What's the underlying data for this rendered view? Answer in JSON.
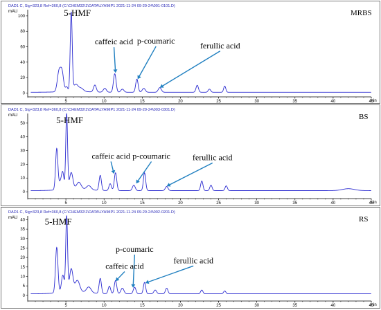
{
  "chart_data": [
    {
      "type": "line",
      "header": "DAD1 C, Sig=323,8 Ref=360,8 (C:\\CHEM32\\1\\DATA\\LYA\\MP1 2021-11-24 09-29-24\\001-0101.D)",
      "sample": "MRBS",
      "ylabel": "mAU",
      "xlabel": "min",
      "xlim": [
        0,
        45
      ],
      "ylim": [
        -5,
        108
      ],
      "xticks": [
        "5",
        "10",
        "15",
        "20",
        "25",
        "30",
        "35",
        "40",
        "45"
      ],
      "yticks": [
        "0",
        "20",
        "40",
        "60",
        "80",
        "100"
      ],
      "baseline": 1.0,
      "peaks": [
        {
          "x": 4.1,
          "h": 26,
          "w": 0.22
        },
        {
          "x": 4.5,
          "h": 24,
          "w": 0.2
        },
        {
          "x": 5.1,
          "h": 6,
          "w": 0.15
        },
        {
          "x": 5.7,
          "h": 102,
          "w": 0.13
        },
        {
          "x": 6.3,
          "h": 9,
          "w": 0.3
        },
        {
          "x": 7.0,
          "h": 4,
          "w": 0.3
        },
        {
          "x": 8.8,
          "h": 9,
          "w": 0.18
        },
        {
          "x": 10.1,
          "h": 5,
          "w": 0.2
        },
        {
          "x": 11.4,
          "h": 24,
          "w": 0.17
        },
        {
          "x": 12.4,
          "h": 4,
          "w": 0.2
        },
        {
          "x": 14.3,
          "h": 17,
          "w": 0.16
        },
        {
          "x": 15.2,
          "h": 5,
          "w": 0.2
        },
        {
          "x": 17.3,
          "h": 6,
          "w": 0.2
        },
        {
          "x": 22.2,
          "h": 9,
          "w": 0.16
        },
        {
          "x": 23.8,
          "h": 4,
          "w": 0.16
        },
        {
          "x": 25.8,
          "h": 8,
          "w": 0.14
        }
      ],
      "annotations": [
        {
          "text": "5-HMF",
          "x": 6.5,
          "y": 100,
          "big": true
        },
        {
          "text": "caffeic acid",
          "x": 11.3,
          "y": 63,
          "arrow_to": [
            11.5,
            26
          ]
        },
        {
          "text": "p-coumaric",
          "x": 16.8,
          "y": 64,
          "arrow_to": [
            14.4,
            18
          ]
        },
        {
          "text": "ferullic acid",
          "x": 25.2,
          "y": 58,
          "arrow_to": [
            17.3,
            7
          ]
        }
      ]
    },
    {
      "type": "line",
      "header": "DAD1 C, Sig=323,8 Ref=360,8 (C:\\CHEM32\\1\\DATA\\LYA\\MP1 2021-11-24 09-29-24\\003-0301.D)",
      "sample": "BS",
      "ylabel": "mAU",
      "xlabel": "min",
      "xlim": [
        0,
        45
      ],
      "ylim": [
        -5,
        57
      ],
      "xticks": [
        "5",
        "10",
        "15",
        "20",
        "25",
        "30",
        "35",
        "40",
        "45"
      ],
      "yticks": [
        "0",
        "10",
        "20",
        "30",
        "40",
        "50"
      ],
      "baseline": 0.8,
      "peaks": [
        {
          "x": 3.8,
          "h": 30,
          "w": 0.15
        },
        {
          "x": 4.3,
          "h": 6,
          "w": 0.2
        },
        {
          "x": 4.6,
          "h": 11,
          "w": 0.15
        },
        {
          "x": 5.1,
          "h": 55,
          "w": 0.12
        },
        {
          "x": 5.7,
          "h": 12,
          "w": 0.22
        },
        {
          "x": 6.7,
          "h": 5,
          "w": 0.3
        },
        {
          "x": 8.0,
          "h": 3,
          "w": 0.3
        },
        {
          "x": 9.5,
          "h": 11,
          "w": 0.15
        },
        {
          "x": 10.8,
          "h": 5,
          "w": 0.16
        },
        {
          "x": 11.5,
          "h": 13,
          "w": 0.16
        },
        {
          "x": 13.9,
          "h": 4,
          "w": 0.18
        },
        {
          "x": 15.3,
          "h": 13,
          "w": 0.15
        },
        {
          "x": 18.2,
          "h": 3,
          "w": 0.18
        },
        {
          "x": 22.8,
          "h": 7,
          "w": 0.15
        },
        {
          "x": 24.0,
          "h": 4,
          "w": 0.15
        },
        {
          "x": 26.0,
          "h": 3.5,
          "w": 0.15
        },
        {
          "x": 42.0,
          "h": 1.4,
          "w": 0.8
        }
      ],
      "annotations": [
        {
          "text": "5-HMF",
          "x": 5.5,
          "y": 50,
          "big": true
        },
        {
          "text": "caffeic acid",
          "x": 10.9,
          "y": 24,
          "arrow_to": [
            11.3,
            13
          ]
        },
        {
          "text": "p-coumaric",
          "x": 16.2,
          "y": 24,
          "arrow_to": [
            14.2,
            6
          ]
        },
        {
          "text": "ferullic acid",
          "x": 24.2,
          "y": 23,
          "arrow_to": [
            18.2,
            4
          ]
        }
      ]
    },
    {
      "type": "line",
      "header": "DAD1 C, Sig=323,8 Ref=360,8 (C:\\CHEM32\\1\\DATA\\LYA\\MP1 2021-11-24 09-29-24\\002-0201.D)",
      "sample": "RS",
      "ylabel": "mAU",
      "xlabel": "min",
      "xlim": [
        0,
        45
      ],
      "ylim": [
        -3,
        42
      ],
      "xticks": [
        "5",
        "10",
        "15",
        "20",
        "25",
        "30",
        "35",
        "40",
        "45"
      ],
      "yticks": [
        "0",
        "5",
        "10",
        "15",
        "20",
        "25",
        "30",
        "35",
        "40"
      ],
      "baseline": 0.8,
      "peaks": [
        {
          "x": 3.8,
          "h": 24,
          "w": 0.16
        },
        {
          "x": 4.6,
          "h": 9,
          "w": 0.18
        },
        {
          "x": 5.1,
          "h": 40,
          "w": 0.12
        },
        {
          "x": 5.7,
          "h": 12,
          "w": 0.22
        },
        {
          "x": 6.5,
          "h": 6,
          "w": 0.3
        },
        {
          "x": 8.0,
          "h": 3,
          "w": 0.3
        },
        {
          "x": 9.5,
          "h": 8,
          "w": 0.15
        },
        {
          "x": 10.7,
          "h": 4,
          "w": 0.16
        },
        {
          "x": 11.5,
          "h": 7,
          "w": 0.16
        },
        {
          "x": 12.4,
          "h": 3,
          "w": 0.2
        },
        {
          "x": 14.0,
          "h": 3.5,
          "w": 0.17
        },
        {
          "x": 15.3,
          "h": 6,
          "w": 0.15
        },
        {
          "x": 16.7,
          "h": 2,
          "w": 0.18
        },
        {
          "x": 18.2,
          "h": 3,
          "w": 0.16
        },
        {
          "x": 22.8,
          "h": 2,
          "w": 0.15
        },
        {
          "x": 25.8,
          "h": 1.5,
          "w": 0.15
        }
      ],
      "annotations": [
        {
          "text": "5-HMF",
          "x": 4.0,
          "y": 37.5,
          "big": true
        },
        {
          "text": "p-coumaric",
          "x": 14.0,
          "y": 23,
          "arrow_to": [
            13.8,
            4
          ]
        },
        {
          "text": "caffeic acid",
          "x": 12.7,
          "y": 14,
          "arrow_to": [
            11.5,
            7.5
          ]
        },
        {
          "text": "ferullic acid",
          "x": 21.7,
          "y": 17,
          "arrow_to": [
            15.4,
            6.5
          ]
        }
      ]
    }
  ]
}
